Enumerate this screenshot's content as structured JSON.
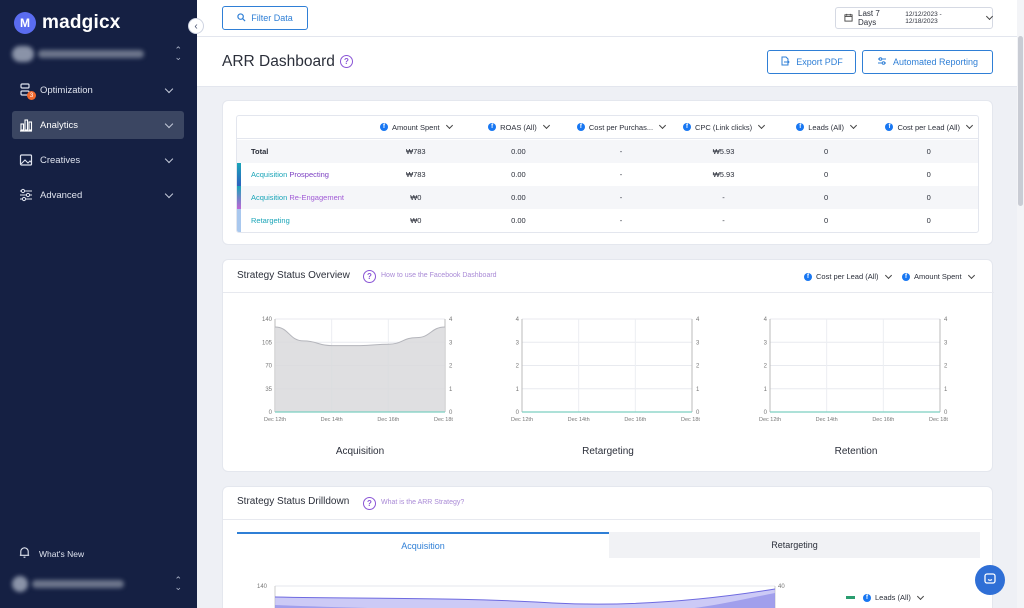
{
  "app": {
    "name": "madgicx"
  },
  "sidebar": {
    "items": [
      {
        "label": "Optimization",
        "badge": "3"
      },
      {
        "label": "Analytics"
      },
      {
        "label": "Creatives"
      },
      {
        "label": "Advanced"
      }
    ],
    "whats_new": "What's New"
  },
  "topbar": {
    "filter_label": "Filter Data",
    "date_label": "Last 7 Days",
    "date_range": "12/12/2023 - 12/18/2023"
  },
  "header": {
    "title": "ARR Dashboard",
    "export_label": "Export PDF",
    "reporting_label": "Automated Reporting"
  },
  "table": {
    "columns": [
      "Amount Spent",
      "ROAS (All)",
      "Cost per Purchas...",
      "CPC (Link clicks)",
      "Leads (All)",
      "Cost per Lead (All)"
    ],
    "rows": [
      {
        "name": "Total",
        "values": [
          "₩783",
          "0.00",
          "-",
          "₩5.93",
          "0",
          "0"
        ]
      },
      {
        "name_a": "Acquisition",
        "name_b": "Prospecting",
        "values": [
          "₩783",
          "0.00",
          "-",
          "₩5.93",
          "0",
          "0"
        ]
      },
      {
        "name_a": "Acquisition",
        "name_b": "Re-Engagement",
        "values": [
          "₩0",
          "0.00",
          "-",
          "-",
          "0",
          "0"
        ]
      },
      {
        "name": "Retargeting",
        "values": [
          "₩0",
          "0.00",
          "-",
          "-",
          "0",
          "0"
        ]
      }
    ]
  },
  "overview": {
    "title": "Strategy Status Overview",
    "help_link": "How to use the Facebook Dashboard",
    "metric_left": "Cost per Lead (All)",
    "metric_right": "Amount Spent",
    "charts": [
      {
        "title": "Acquisition",
        "left_ticks": [
          "140",
          "105",
          "70",
          "35",
          "0"
        ],
        "right_ticks": [
          "4",
          "3",
          "2",
          "1",
          "0"
        ],
        "x_ticks": [
          "Dec 12th",
          "Dec 14th",
          "Dec 16th",
          "Dec 18th"
        ],
        "area_values": [
          128,
          107,
          100,
          100,
          102,
          112,
          128
        ]
      },
      {
        "title": "Retargeting",
        "left_ticks": [
          "4",
          "3",
          "2",
          "1",
          "0"
        ],
        "right_ticks": [
          "4",
          "3",
          "2",
          "1",
          "0"
        ],
        "x_ticks": [
          "Dec 12th",
          "Dec 14th",
          "Dec 16th",
          "Dec 18th"
        ]
      },
      {
        "title": "Retention",
        "left_ticks": [
          "4",
          "3",
          "2",
          "1",
          "0"
        ],
        "right_ticks": [
          "4",
          "3",
          "2",
          "1",
          "0"
        ],
        "x_ticks": [
          "Dec 12th",
          "Dec 14th",
          "Dec 16th",
          "Dec 18th"
        ]
      }
    ]
  },
  "drilldown": {
    "title": "Strategy Status Drilldown",
    "help_link": "What is the ARR Strategy?",
    "tabs": [
      "Acquisition",
      "Retargeting"
    ],
    "left_tick": "140",
    "right_tick": "40",
    "legend": "Leads (All)"
  },
  "colors": {
    "accent": "#2f7fd6",
    "sidebar": "#152043",
    "teal": "#1aa5b8",
    "purple": "#a05ad6"
  }
}
